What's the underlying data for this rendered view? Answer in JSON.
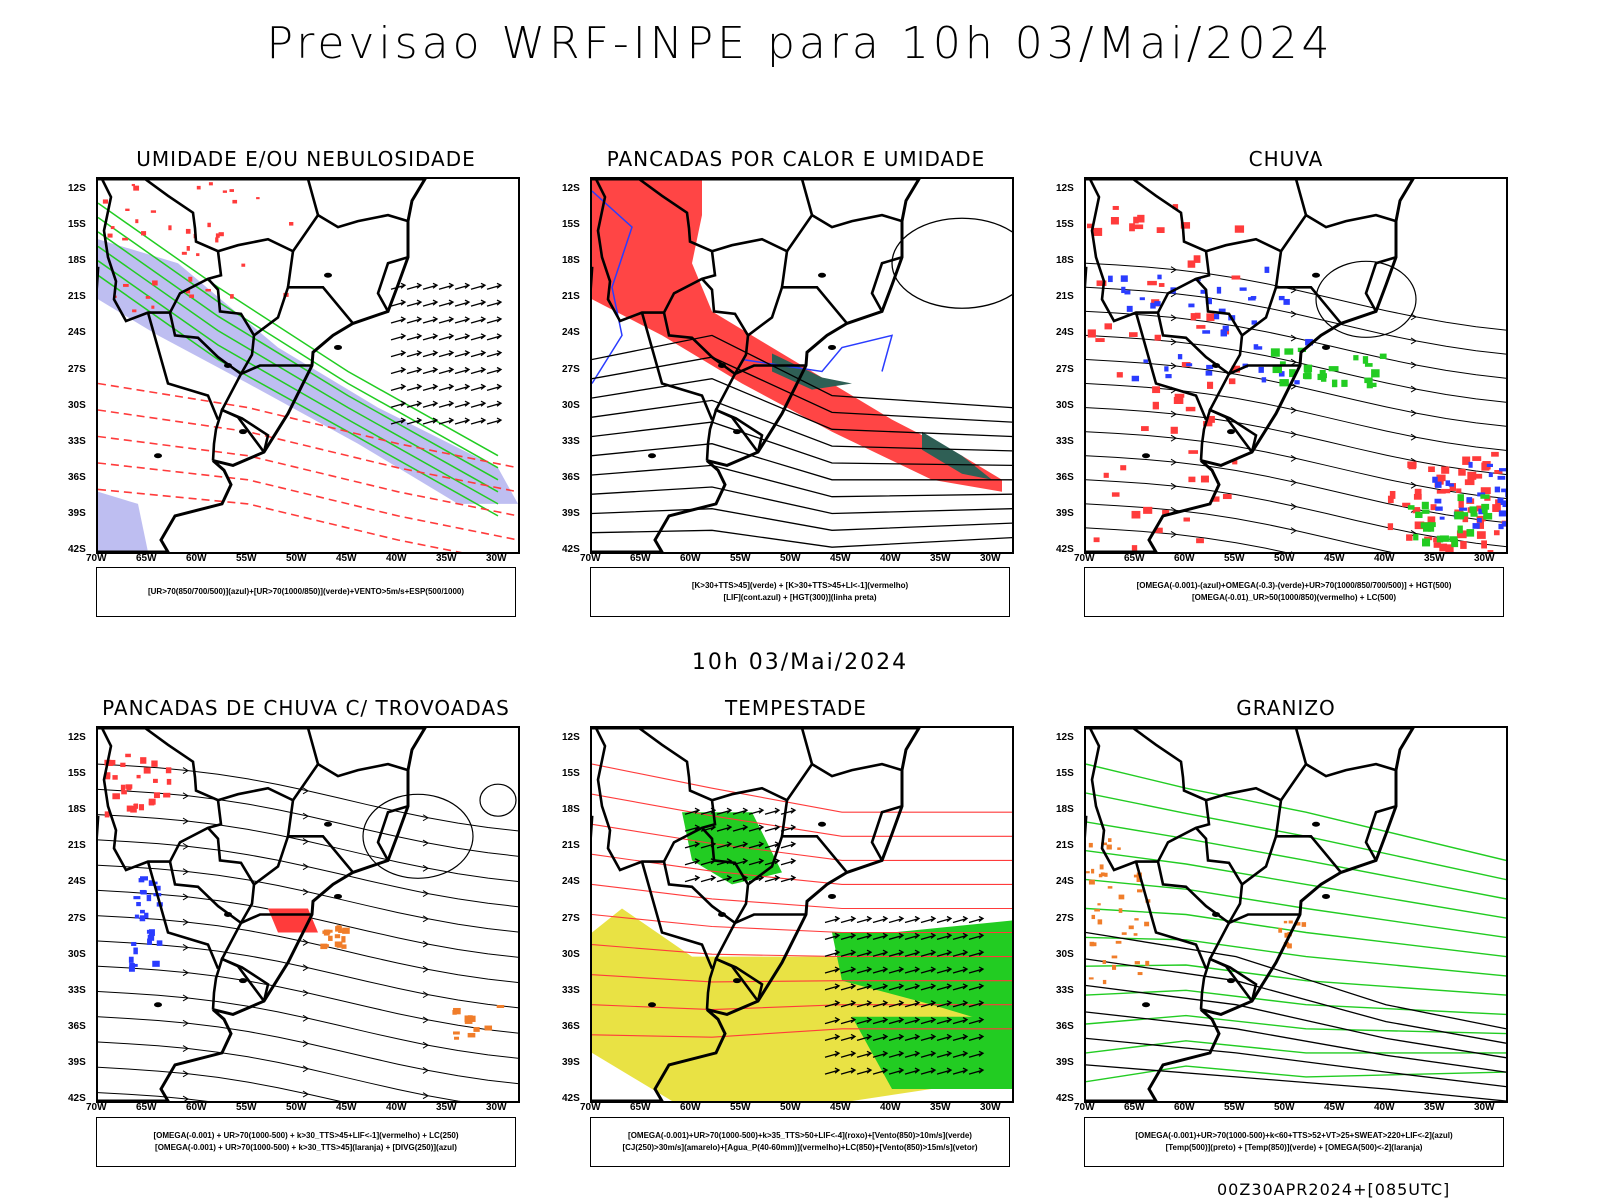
{
  "title": "Previsao WRF-INPE  para 10h 03/Mai/2024",
  "mid_label": "10h 03/Mai/2024",
  "footer": "00Z30APR2024+[085UTC]",
  "lat_ticks": [
    "12S",
    "15S",
    "18S",
    "21S",
    "24S",
    "27S",
    "30S",
    "33S",
    "36S",
    "39S",
    "42S"
  ],
  "lon_ticks": [
    "70W",
    "65W",
    "60W",
    "55W",
    "50W",
    "45W",
    "40W",
    "35W",
    "30W"
  ],
  "panels": [
    {
      "title": "UMIDADE E/OU NEBULOSIDADE",
      "legend_lines": [
        "[UR>70(850/700/500)](azul)+[UR>70(1000/850)](verde)+VENTO>5m/s+ESP(500/1000)"
      ]
    },
    {
      "title": "PANCADAS POR CALOR E UMIDADE",
      "legend_lines": [
        "[K>30+TTS>45](verde) + [K>30+TTS>45+LI<-1](vermelho)",
        "[LIF](cont.azul) + [HGT(300)](linha preta)"
      ]
    },
    {
      "title": "CHUVA",
      "legend_lines": [
        "[OMEGA(-0.001)-(azul)+OMEGA(-0.3)-(verde)+UR>70(1000/850/700/500)] + HGT(500)",
        "[OMEGA(-0.01)_UR>50(1000/850)(vermelho) + LC(500)"
      ]
    },
    {
      "title": "PANCADAS DE CHUVA C/ TROVOADAS",
      "legend_lines": [
        "[OMEGA(-0.001) + UR>70(1000-500) + k>30_TTS>45+LIF<-1](vermelho) + LC(250)",
        "[OMEGA(-0.001) + UR>70(1000-500) + k>30_TTS>45](laranja) + [DIVG(250)](azul)"
      ]
    },
    {
      "title": "TEMPESTADE",
      "legend_lines": [
        "[OMEGA(-0.001)+UR>70(1000-500)+k>35_TTS>50+LIF<-4](roxo)+[Vento(850)>10m/s](verde)",
        "[CJ(250)>30m/s](amarelo)+[Agua_P(40-60mm)](vermelho)+LC(850)+[Vento(850)>15m/s](vetor)"
      ]
    },
    {
      "title": "GRANIZO",
      "legend_lines": [
        "[OMEGA(-0.001)+UR>70(1000-500)+k<60+TTS>52+VT>25+SWEAT>220+LIF<-2](azul)",
        "[Temp(500)](preto) + [Temp(850)](verde) + [OMEGA(500)<-2](laranja)"
      ]
    }
  ],
  "colors": {
    "red": "#ff3b3b",
    "green": "#22cc22",
    "blue": "#2a3cff",
    "lavender": "#b3b3ee",
    "yellow": "#e8e03a",
    "darkteal": "#2f5f55"
  }
}
